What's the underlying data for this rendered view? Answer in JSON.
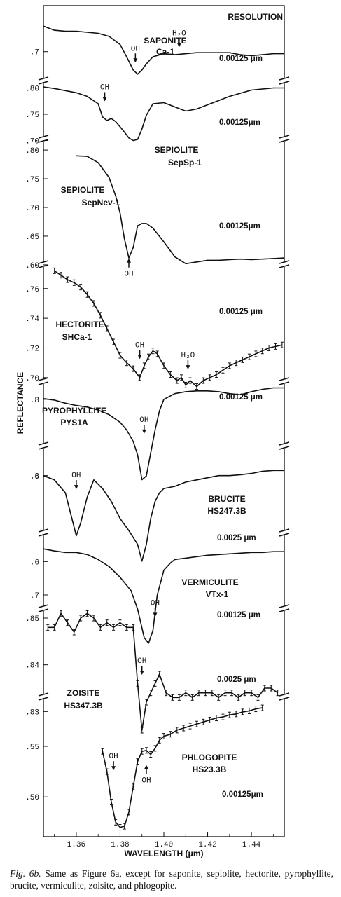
{
  "chart_data": {
    "type": "line",
    "title": "",
    "xlabel": "WAVELENGTH (μm)",
    "ylabel": "REFLECTANCE",
    "xlim": [
      1.345,
      1.455
    ],
    "x_ticks": [
      "1.36",
      "1.38",
      "1.40",
      "1.42",
      "1.44"
    ],
    "x_tick_values": [
      1.36,
      1.38,
      1.4,
      1.42,
      1.44
    ],
    "resolution_header": "RESOLUTION",
    "grid": false,
    "legend": "none",
    "series": [
      {
        "mineral": "SAPONITE",
        "sample": "Ca-1",
        "resolution": "0.00125 μm",
        "yticks": [
          ".7"
        ],
        "ytick_values": [
          0.7
        ],
        "ylim": [
          0.66,
          0.73
        ],
        "error_bars": false,
        "x": [
          1.345,
          1.35,
          1.355,
          1.36,
          1.365,
          1.37,
          1.375,
          1.38,
          1.383,
          1.386,
          1.388,
          1.39,
          1.392,
          1.395,
          1.4,
          1.405,
          1.41,
          1.415,
          1.42,
          1.425,
          1.43,
          1.435,
          1.44,
          1.445,
          1.45,
          1.455
        ],
        "y": [
          0.725,
          0.721,
          0.72,
          0.72,
          0.719,
          0.718,
          0.715,
          0.707,
          0.695,
          0.682,
          0.678,
          0.682,
          0.688,
          0.695,
          0.698,
          0.697,
          0.698,
          0.699,
          0.699,
          0.699,
          0.699,
          0.697,
          0.696,
          0.697,
          0.698,
          0.698
        ],
        "annotations": [
          {
            "text": "OH",
            "x": 1.387,
            "y": 0.69,
            "arrow": "down"
          },
          {
            "text": "H₂O",
            "x": 1.407,
            "y": 0.705,
            "arrow": "down"
          }
        ]
      },
      {
        "mineral": "SEPIOLITE",
        "sample": "SepSp-1",
        "resolution": "0.00125μm",
        "yticks": [
          ".80",
          ".75",
          ".70"
        ],
        "ytick_values": [
          0.8,
          0.75,
          0.7
        ],
        "ylim": [
          0.69,
          0.81
        ],
        "error_bars": false,
        "x": [
          1.345,
          1.35,
          1.355,
          1.36,
          1.365,
          1.37,
          1.372,
          1.374,
          1.376,
          1.378,
          1.38,
          1.382,
          1.384,
          1.386,
          1.388,
          1.39,
          1.392,
          1.395,
          1.4,
          1.405,
          1.41,
          1.415,
          1.42,
          1.425,
          1.43,
          1.435,
          1.44,
          1.445,
          1.45,
          1.455
        ],
        "y": [
          0.802,
          0.799,
          0.795,
          0.791,
          0.784,
          0.77,
          0.745,
          0.738,
          0.742,
          0.736,
          0.726,
          0.716,
          0.705,
          0.7,
          0.702,
          0.722,
          0.748,
          0.77,
          0.772,
          0.764,
          0.756,
          0.76,
          0.768,
          0.776,
          0.784,
          0.79,
          0.796,
          0.798,
          0.8,
          0.8
        ],
        "annotations": [
          {
            "text": "OH",
            "x": 1.373,
            "y": 0.776,
            "arrow": "down"
          }
        ]
      },
      {
        "mineral": "SEPIOLITE",
        "sample": "SepNev-1",
        "resolution": "0.00125μm",
        "yticks": [
          ".80",
          ".75",
          ".70",
          ".65",
          ".60"
        ],
        "ytick_values": [
          0.8,
          0.75,
          0.7,
          0.65,
          0.6
        ],
        "ylim": [
          0.595,
          0.805
        ],
        "error_bars": false,
        "x": [
          1.36,
          1.365,
          1.37,
          1.375,
          1.378,
          1.38,
          1.382,
          1.384,
          1.386,
          1.388,
          1.39,
          1.392,
          1.395,
          1.4,
          1.405,
          1.41,
          1.415,
          1.42,
          1.425,
          1.43,
          1.435,
          1.44,
          1.445,
          1.45,
          1.455
        ],
        "y": [
          0.79,
          0.789,
          0.778,
          0.752,
          0.72,
          0.69,
          0.645,
          0.612,
          0.63,
          0.668,
          0.672,
          0.672,
          0.664,
          0.64,
          0.614,
          0.602,
          0.605,
          0.608,
          0.608,
          0.609,
          0.61,
          0.609,
          0.61,
          0.611,
          0.612
        ],
        "annotations": [
          {
            "text": "OH",
            "x": 1.384,
            "y": 0.61,
            "arrow": "up"
          }
        ]
      },
      {
        "mineral": "HECTORITE",
        "sample": "SHCa-1",
        "resolution": "0.00125 μm",
        "yticks": [
          ".76",
          ".74",
          ".72",
          ".70"
        ],
        "ytick_values": [
          0.76,
          0.74,
          0.72,
          0.7
        ],
        "ylim": [
          0.69,
          0.775
        ],
        "error_bars": true,
        "x": [
          1.35,
          1.353,
          1.356,
          1.359,
          1.362,
          1.365,
          1.368,
          1.371,
          1.374,
          1.377,
          1.38,
          1.383,
          1.386,
          1.389,
          1.391,
          1.393,
          1.395,
          1.397,
          1.4,
          1.403,
          1.406,
          1.408,
          1.41,
          1.412,
          1.415,
          1.418,
          1.421,
          1.424,
          1.427,
          1.43,
          1.433,
          1.436,
          1.439,
          1.442,
          1.445,
          1.448,
          1.451,
          1.454
        ],
        "y": [
          0.772,
          0.769,
          0.766,
          0.764,
          0.761,
          0.756,
          0.75,
          0.742,
          0.733,
          0.724,
          0.715,
          0.71,
          0.706,
          0.7,
          0.708,
          0.714,
          0.718,
          0.716,
          0.708,
          0.702,
          0.698,
          0.7,
          0.695,
          0.698,
          0.694,
          0.698,
          0.7,
          0.702,
          0.705,
          0.708,
          0.71,
          0.712,
          0.714,
          0.716,
          0.718,
          0.72,
          0.721,
          0.722
        ],
        "annotations": [
          {
            "text": "OH",
            "x": 1.389,
            "y": 0.713,
            "arrow": "down"
          },
          {
            "text": "H₂O",
            "x": 1.411,
            "y": 0.706,
            "arrow": "down"
          }
        ]
      },
      {
        "mineral": "PYROPHYLLITE",
        "sample": "PYS1A",
        "resolution": "0.00125 μm",
        "yticks": [
          ".8",
          ".6"
        ],
        "ytick_values": [
          0.8,
          0.6
        ],
        "ylim": [
          0.58,
          0.84
        ],
        "error_bars": false,
        "x": [
          1.345,
          1.35,
          1.355,
          1.36,
          1.365,
          1.37,
          1.375,
          1.38,
          1.383,
          1.386,
          1.388,
          1.39,
          1.392,
          1.394,
          1.396,
          1.398,
          1.4,
          1.405,
          1.41,
          1.415,
          1.42,
          1.425,
          1.43,
          1.435,
          1.44,
          1.445,
          1.45,
          1.455
        ],
        "y": [
          0.802,
          0.798,
          0.79,
          0.784,
          0.78,
          0.772,
          0.76,
          0.74,
          0.72,
          0.69,
          0.655,
          0.59,
          0.6,
          0.66,
          0.72,
          0.77,
          0.8,
          0.815,
          0.82,
          0.822,
          0.822,
          0.82,
          0.815,
          0.812,
          0.82,
          0.826,
          0.83,
          0.83
        ],
        "annotations": [
          {
            "text": "OH",
            "x": 1.391,
            "y": 0.712,
            "arrow": "down"
          }
        ]
      },
      {
        "mineral": "BRUCITE",
        "sample": "HS247.3B",
        "resolution": "0.0025 μm",
        "yticks": [
          ".8",
          ".6"
        ],
        "ytick_values": [
          0.8,
          0.6
        ],
        "ylim": [
          0.55,
          0.85
        ],
        "error_bars": false,
        "x": [
          1.345,
          1.35,
          1.355,
          1.358,
          1.36,
          1.362,
          1.365,
          1.368,
          1.372,
          1.376,
          1.38,
          1.384,
          1.388,
          1.39,
          1.392,
          1.394,
          1.396,
          1.398,
          1.4,
          1.405,
          1.41,
          1.415,
          1.42,
          1.425,
          1.43,
          1.435,
          1.44,
          1.445,
          1.45,
          1.455
        ],
        "y": [
          0.8,
          0.79,
          0.76,
          0.7,
          0.66,
          0.69,
          0.75,
          0.79,
          0.77,
          0.74,
          0.7,
          0.672,
          0.64,
          0.601,
          0.64,
          0.7,
          0.74,
          0.76,
          0.77,
          0.775,
          0.785,
          0.79,
          0.795,
          0.8,
          0.8,
          0.802,
          0.805,
          0.81,
          0.812,
          0.812
        ],
        "annotations": [
          {
            "text": "OH",
            "x": 1.36,
            "y": 0.77,
            "arrow": "down"
          }
        ]
      },
      {
        "mineral": "VERMICULITE",
        "sample": "VTx-1",
        "resolution": "0.00125 μm",
        "yticks": [
          ".7"
        ],
        "ytick_values": [
          0.7
        ],
        "ylim": [
          0.62,
          0.78
        ],
        "error_bars": false,
        "x": [
          1.345,
          1.35,
          1.355,
          1.36,
          1.365,
          1.37,
          1.375,
          1.38,
          1.385,
          1.388,
          1.391,
          1.393,
          1.395,
          1.397,
          1.4,
          1.403,
          1.405,
          1.41,
          1.415,
          1.42,
          1.425,
          1.43,
          1.435,
          1.44,
          1.445,
          1.45,
          1.455
        ],
        "y": [
          0.765,
          0.762,
          0.76,
          0.76,
          0.757,
          0.75,
          0.74,
          0.725,
          0.706,
          0.68,
          0.64,
          0.632,
          0.65,
          0.7,
          0.735,
          0.745,
          0.75,
          0.752,
          0.754,
          0.756,
          0.757,
          0.758,
          0.759,
          0.76,
          0.76,
          0.761,
          0.761
        ],
        "annotations": [
          {
            "text": "OH",
            "x": 1.396,
            "y": 0.67,
            "arrow": "down"
          }
        ]
      },
      {
        "mineral": "ZOISITE",
        "sample": "HS347.3B",
        "resolution": "0.0025 μm",
        "yticks": [
          ".85",
          ".84",
          ".83"
        ],
        "ytick_values": [
          0.85,
          0.84,
          0.83
        ],
        "ylim": [
          0.823,
          0.856
        ],
        "error_bars": true,
        "x": [
          1.347,
          1.35,
          1.353,
          1.356,
          1.359,
          1.362,
          1.365,
          1.368,
          1.371,
          1.374,
          1.377,
          1.38,
          1.383,
          1.386,
          1.388,
          1.39,
          1.392,
          1.394,
          1.396,
          1.398,
          1.401,
          1.404,
          1.407,
          1.41,
          1.413,
          1.416,
          1.419,
          1.422,
          1.425,
          1.428,
          1.431,
          1.434,
          1.437,
          1.44,
          1.443,
          1.446,
          1.449,
          1.452
        ],
        "y": [
          0.848,
          0.848,
          0.851,
          0.849,
          0.847,
          0.85,
          0.851,
          0.85,
          0.848,
          0.849,
          0.848,
          0.849,
          0.848,
          0.848,
          0.836,
          0.826,
          0.832,
          0.834,
          0.836,
          0.838,
          0.834,
          0.833,
          0.833,
          0.834,
          0.833,
          0.834,
          0.834,
          0.834,
          0.833,
          0.834,
          0.834,
          0.833,
          0.834,
          0.834,
          0.833,
          0.835,
          0.835,
          0.834
        ],
        "annotations": [
          {
            "text": "OH",
            "x": 1.39,
            "y": 0.838,
            "arrow": "down"
          }
        ]
      },
      {
        "mineral": "PHLOGOPITE",
        "sample": "HS23.3B",
        "resolution": "0.00125μm",
        "yticks": [
          ".55",
          ".50"
        ],
        "ytick_values": [
          0.55,
          0.5
        ],
        "ylim": [
          0.46,
          0.595
        ],
        "error_bars": true,
        "x": [
          1.372,
          1.374,
          1.376,
          1.378,
          1.38,
          1.382,
          1.384,
          1.386,
          1.388,
          1.39,
          1.392,
          1.394,
          1.396,
          1.398,
          1.4,
          1.403,
          1.406,
          1.409,
          1.412,
          1.415,
          1.418,
          1.421,
          1.424,
          1.427,
          1.43,
          1.433,
          1.436,
          1.439,
          1.442,
          1.445
        ],
        "y": [
          0.545,
          0.525,
          0.495,
          0.475,
          0.47,
          0.471,
          0.485,
          0.51,
          0.535,
          0.545,
          0.546,
          0.542,
          0.548,
          0.556,
          0.56,
          0.562,
          0.566,
          0.568,
          0.57,
          0.572,
          0.574,
          0.576,
          0.578,
          0.579,
          0.581,
          0.582,
          0.584,
          0.585,
          0.587,
          0.588
        ],
        "annotations": [
          {
            "text": "OH",
            "x": 1.377,
            "y": 0.527,
            "arrow": "down"
          },
          {
            "text": "OH",
            "x": 1.392,
            "y": 0.531,
            "arrow": "up"
          }
        ]
      }
    ]
  },
  "caption": {
    "figure_label": "Fig. 6b.",
    "text": "Same as Figure 6a, except for saponite, sepiolite, hectorite, pyrophyllite, brucite, vermiculite, zoisite, and phlogopite."
  }
}
